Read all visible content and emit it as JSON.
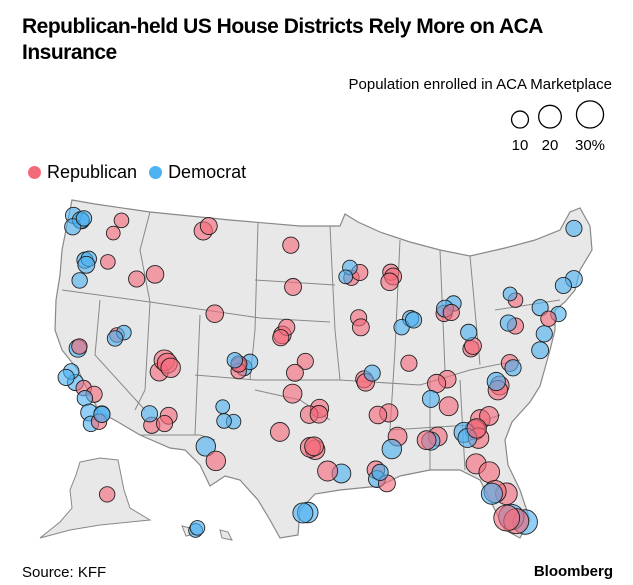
{
  "header": {
    "title": "Republican-held US House Districts Rely More on ACA Insurance"
  },
  "footer": {
    "source": "Source: KFF",
    "brand": "Bloomberg"
  },
  "colors": {
    "republican": "#f36b7a",
    "democrat": "#4db2f0",
    "land": "#e8e8e8",
    "border": "#888888"
  },
  "chart_data": {
    "type": "scatter",
    "subtype": "proportional-symbol map",
    "title": "Republican-held US House Districts Rely More on ACA Insurance",
    "size_legend": {
      "title": "Population enrolled in ACA Marketplace",
      "values": [
        10,
        20,
        30
      ],
      "labels": [
        "10",
        "20",
        "30%"
      ]
    },
    "color_legend": [
      {
        "label": "Republican",
        "party": "R"
      },
      {
        "label": "Democrat",
        "party": "D"
      }
    ],
    "source": "Source: KFF",
    "points": [
      {
        "region": "WA-west",
        "party": "D",
        "pct": 8
      },
      {
        "region": "WA-west",
        "party": "D",
        "pct": 9
      },
      {
        "region": "WA-west",
        "party": "D",
        "pct": 10
      },
      {
        "region": "WA-west",
        "party": "D",
        "pct": 9
      },
      {
        "region": "WA-west",
        "party": "D",
        "pct": 8
      },
      {
        "region": "WA-east",
        "party": "R",
        "pct": 6
      },
      {
        "region": "WA-east",
        "party": "R",
        "pct": 7
      },
      {
        "region": "OR",
        "party": "D",
        "pct": 9
      },
      {
        "region": "OR",
        "party": "D",
        "pct": 8
      },
      {
        "region": "OR",
        "party": "D",
        "pct": 10
      },
      {
        "region": "OR-east",
        "party": "R",
        "pct": 7
      },
      {
        "region": "OR-coast",
        "party": "D",
        "pct": 8
      },
      {
        "region": "ID",
        "party": "R",
        "pct": 9
      },
      {
        "region": "ID",
        "party": "R",
        "pct": 11
      },
      {
        "region": "MT",
        "party": "R",
        "pct": 12
      },
      {
        "region": "MT",
        "party": "R",
        "pct": 10
      },
      {
        "region": "WY",
        "party": "R",
        "pct": 11
      },
      {
        "region": "ND",
        "party": "R",
        "pct": 9
      },
      {
        "region": "SD",
        "party": "R",
        "pct": 10
      },
      {
        "region": "NE",
        "party": "R",
        "pct": 11
      },
      {
        "region": "NE",
        "party": "R",
        "pct": 9
      },
      {
        "region": "NE",
        "party": "R",
        "pct": 9
      },
      {
        "region": "UT",
        "party": "R",
        "pct": 12
      },
      {
        "region": "UT",
        "party": "R",
        "pct": 16
      },
      {
        "region": "UT",
        "party": "R",
        "pct": 15
      },
      {
        "region": "UT",
        "party": "R",
        "pct": 14
      },
      {
        "region": "NV",
        "party": "R",
        "pct": 7
      },
      {
        "region": "NV",
        "party": "D",
        "pct": 7
      },
      {
        "region": "NV",
        "party": "D",
        "pct": 8
      },
      {
        "region": "CO",
        "party": "D",
        "pct": 9
      },
      {
        "region": "CO",
        "party": "D",
        "pct": 8
      },
      {
        "region": "CO",
        "party": "R",
        "pct": 7
      },
      {
        "region": "CO",
        "party": "R",
        "pct": 8
      },
      {
        "region": "CO",
        "party": "R",
        "pct": 9
      },
      {
        "region": "CO",
        "party": "D",
        "pct": 8
      },
      {
        "region": "KS",
        "party": "R",
        "pct": 9
      },
      {
        "region": "KS",
        "party": "R",
        "pct": 10
      },
      {
        "region": "CA-north",
        "party": "D",
        "pct": 11
      },
      {
        "region": "CA-north",
        "party": "R",
        "pct": 8
      },
      {
        "region": "CA-bay",
        "party": "D",
        "pct": 9
      },
      {
        "region": "CA-bay",
        "party": "D",
        "pct": 8
      },
      {
        "region": "CA-bay",
        "party": "D",
        "pct": 9
      },
      {
        "region": "CA-central",
        "party": "R",
        "pct": 8
      },
      {
        "region": "CA-central",
        "party": "R",
        "pct": 9
      },
      {
        "region": "CA-central",
        "party": "D",
        "pct": 8
      },
      {
        "region": "CA-south",
        "party": "D",
        "pct": 10
      },
      {
        "region": "CA-south",
        "party": "D",
        "pct": 9
      },
      {
        "region": "CA-south",
        "party": "D",
        "pct": 8
      },
      {
        "region": "CA-south",
        "party": "R",
        "pct": 8
      },
      {
        "region": "CA-south",
        "party": "D",
        "pct": 9
      },
      {
        "region": "AZ",
        "party": "R",
        "pct": 9
      },
      {
        "region": "AZ",
        "party": "R",
        "pct": 10
      },
      {
        "region": "AZ",
        "party": "D",
        "pct": 9
      },
      {
        "region": "AZ",
        "party": "R",
        "pct": 9
      },
      {
        "region": "NM",
        "party": "D",
        "pct": 7
      },
      {
        "region": "NM",
        "party": "D",
        "pct": 7
      },
      {
        "region": "NM",
        "party": "D",
        "pct": 6
      },
      {
        "region": "TX-west",
        "party": "D",
        "pct": 14
      },
      {
        "region": "TX-west",
        "party": "R",
        "pct": 14
      },
      {
        "region": "TX-panhandle",
        "party": "R",
        "pct": 13
      },
      {
        "region": "TX-north",
        "party": "R",
        "pct": 13
      },
      {
        "region": "TX-dallas",
        "party": "R",
        "pct": 14
      },
      {
        "region": "TX-dallas",
        "party": "R",
        "pct": 15
      },
      {
        "region": "TX-dallas",
        "party": "R",
        "pct": 13
      },
      {
        "region": "TX-houston",
        "party": "D",
        "pct": 13
      },
      {
        "region": "TX-houston",
        "party": "R",
        "pct": 15
      },
      {
        "region": "TX-south",
        "party": "D",
        "pct": 16
      },
      {
        "region": "TX-south",
        "party": "D",
        "pct": 15
      },
      {
        "region": "OK",
        "party": "R",
        "pct": 12
      },
      {
        "region": "OK",
        "party": "R",
        "pct": 11
      },
      {
        "region": "OK",
        "party": "R",
        "pct": 11
      },
      {
        "region": "MN",
        "party": "R",
        "pct": 8
      },
      {
        "region": "MN",
        "party": "R",
        "pct": 9
      },
      {
        "region": "MN",
        "party": "D",
        "pct": 7
      },
      {
        "region": "MN",
        "party": "D",
        "pct": 6
      },
      {
        "region": "WI",
        "party": "R",
        "pct": 9
      },
      {
        "region": "WI",
        "party": "R",
        "pct": 10
      },
      {
        "region": "WI",
        "party": "R",
        "pct": 11
      },
      {
        "region": "IA",
        "party": "R",
        "pct": 9
      },
      {
        "region": "IA",
        "party": "R",
        "pct": 10
      },
      {
        "region": "IL-chicago",
        "party": "D",
        "pct": 9
      },
      {
        "region": "IL-chicago",
        "party": "D",
        "pct": 8
      },
      {
        "region": "IL-chicago",
        "party": "D",
        "pct": 9
      },
      {
        "region": "IL",
        "party": "R",
        "pct": 9
      },
      {
        "region": "MI",
        "party": "R",
        "pct": 9
      },
      {
        "region": "MI",
        "party": "D",
        "pct": 8
      },
      {
        "region": "MI",
        "party": "D",
        "pct": 10
      },
      {
        "region": "MI",
        "party": "R",
        "pct": 9
      },
      {
        "region": "OH",
        "party": "R",
        "pct": 9
      },
      {
        "region": "OH",
        "party": "R",
        "pct": 10
      },
      {
        "region": "OH",
        "party": "D",
        "pct": 9
      },
      {
        "region": "PA",
        "party": "R",
        "pct": 9
      },
      {
        "region": "PA",
        "party": "D",
        "pct": 9
      },
      {
        "region": "NY",
        "party": "R",
        "pct": 7
      },
      {
        "region": "NY",
        "party": "D",
        "pct": 6
      },
      {
        "region": "NYC",
        "party": "D",
        "pct": 8
      },
      {
        "region": "NYC",
        "party": "D",
        "pct": 9
      },
      {
        "region": "NJ",
        "party": "D",
        "pct": 9
      },
      {
        "region": "NJ",
        "party": "R",
        "pct": 8
      },
      {
        "region": "New-England",
        "party": "D",
        "pct": 10
      },
      {
        "region": "New-England",
        "party": "D",
        "pct": 9
      },
      {
        "region": "ME",
        "party": "D",
        "pct": 9
      },
      {
        "region": "MD-VA",
        "party": "D",
        "pct": 10
      },
      {
        "region": "VA",
        "party": "R",
        "pct": 10
      },
      {
        "region": "VA",
        "party": "D",
        "pct": 9
      },
      {
        "region": "MO",
        "party": "R",
        "pct": 10
      },
      {
        "region": "MO",
        "party": "R",
        "pct": 11
      },
      {
        "region": "MO",
        "party": "D",
        "pct": 9
      },
      {
        "region": "KY-TN",
        "party": "R",
        "pct": 11
      },
      {
        "region": "KY-TN",
        "party": "R",
        "pct": 12
      },
      {
        "region": "TN",
        "party": "R",
        "pct": 13
      },
      {
        "region": "TN",
        "party": "D",
        "pct": 10
      },
      {
        "region": "NC",
        "party": "R",
        "pct": 13
      },
      {
        "region": "NC",
        "party": "R",
        "pct": 14
      },
      {
        "region": "NC",
        "party": "D",
        "pct": 12
      },
      {
        "region": "SC",
        "party": "R",
        "pct": 14
      },
      {
        "region": "SC",
        "party": "R",
        "pct": 13
      },
      {
        "region": "AR",
        "party": "R",
        "pct": 12
      },
      {
        "region": "AR",
        "party": "R",
        "pct": 11
      },
      {
        "region": "MS",
        "party": "R",
        "pct": 13
      },
      {
        "region": "MS",
        "party": "D",
        "pct": 14
      },
      {
        "region": "AL",
        "party": "R",
        "pct": 13
      },
      {
        "region": "AL",
        "party": "D",
        "pct": 12
      },
      {
        "region": "AL",
        "party": "R",
        "pct": 13
      },
      {
        "region": "GA",
        "party": "R",
        "pct": 15
      },
      {
        "region": "GA",
        "party": "D",
        "pct": 15
      },
      {
        "region": "GA",
        "party": "R",
        "pct": 16
      },
      {
        "region": "GA",
        "party": "D",
        "pct": 13
      },
      {
        "region": "GA",
        "party": "R",
        "pct": 14
      },
      {
        "region": "LA",
        "party": "R",
        "pct": 11
      },
      {
        "region": "LA",
        "party": "D",
        "pct": 10
      },
      {
        "region": "LA",
        "party": "R",
        "pct": 10
      },
      {
        "region": "LA",
        "party": "D",
        "pct": 9
      },
      {
        "region": "FL-north",
        "party": "R",
        "pct": 15
      },
      {
        "region": "FL-north",
        "party": "R",
        "pct": 16
      },
      {
        "region": "FL-central",
        "party": "R",
        "pct": 18
      },
      {
        "region": "FL-central",
        "party": "R",
        "pct": 19
      },
      {
        "region": "FL-central",
        "party": "D",
        "pct": 17
      },
      {
        "region": "FL-south",
        "party": "D",
        "pct": 24
      },
      {
        "region": "FL-south",
        "party": "D",
        "pct": 26
      },
      {
        "region": "FL-south",
        "party": "R",
        "pct": 25
      },
      {
        "region": "FL-south",
        "party": "R",
        "pct": 27
      },
      {
        "region": "AK",
        "party": "R",
        "pct": 8
      },
      {
        "region": "HI",
        "party": "D",
        "pct": 6
      },
      {
        "region": "HI",
        "party": "D",
        "pct": 7
      }
    ]
  }
}
